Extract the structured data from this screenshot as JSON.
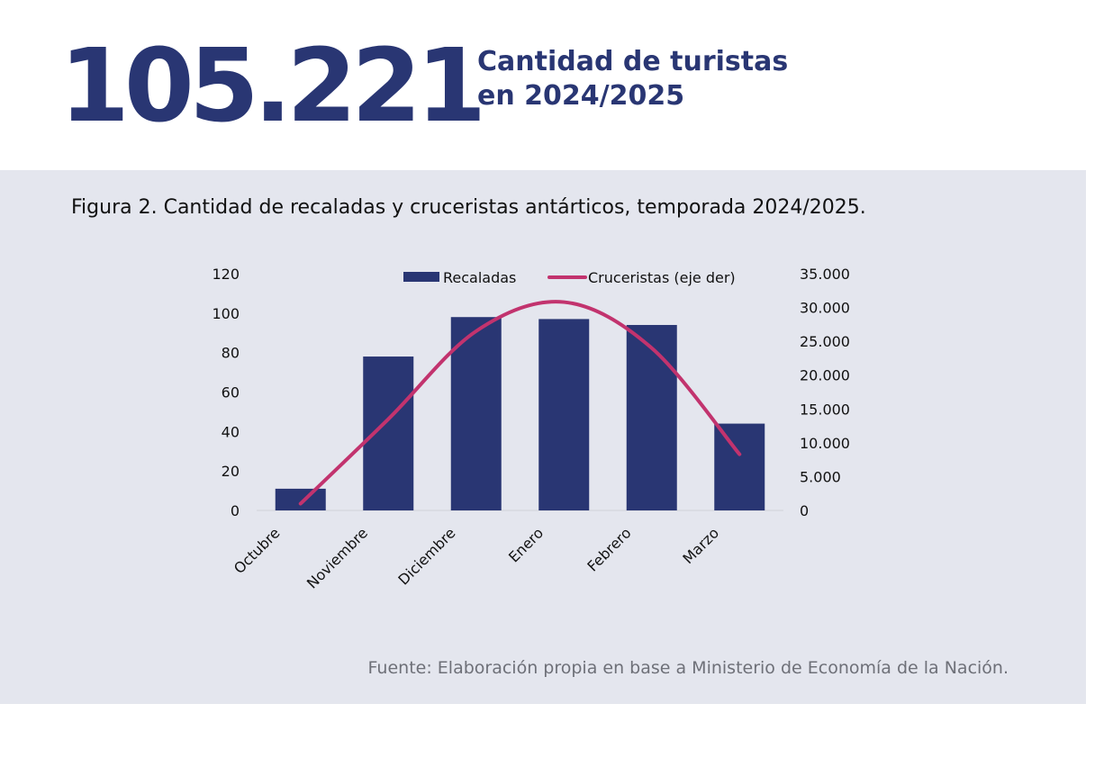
{
  "headline": {
    "number": "105.221",
    "caption_line1": "Cantidad de turistas",
    "caption_line2": "en 2024/2025"
  },
  "figure": {
    "title": "Figura 2. Cantidad de recaladas y cruceristas antárticos, temporada 2024/2025.",
    "source": "Fuente: Elaboración propia en base a Ministerio de Economía de la Nación."
  },
  "colors": {
    "navy": "#293673",
    "line": "#c2336e",
    "panel_bg": "#e4e6ee"
  },
  "chart_data": {
    "type": "bar",
    "title": "Figura 2. Cantidad de recaladas y cruceristas antárticos, temporada 2024/2025.",
    "categories": [
      "Octubre",
      "Noviembre",
      "Diciembre",
      "Enero",
      "Febrero",
      "Marzo"
    ],
    "series": [
      {
        "name": "Recaladas",
        "type": "bar",
        "axis": "left",
        "values": [
          11,
          78,
          98,
          97,
          94,
          44
        ]
      },
      {
        "name": "Cruceristas (eje der)",
        "type": "line",
        "axis": "right",
        "values": [
          1000,
          13500,
          26500,
          30800,
          24000,
          8300
        ]
      }
    ],
    "y_left": {
      "min": 0,
      "max": 120,
      "ticks": [
        "0",
        "20",
        "40",
        "60",
        "80",
        "100",
        "120"
      ]
    },
    "y_right": {
      "min": 0,
      "max": 35000,
      "ticks": [
        "0",
        "5.000",
        "10.000",
        "15.000",
        "20.000",
        "25.000",
        "30.000",
        "35.000"
      ]
    },
    "legend": [
      "Recaladas",
      "Cruceristas (eje der)"
    ],
    "legend_position": "top-center",
    "grid": false
  }
}
